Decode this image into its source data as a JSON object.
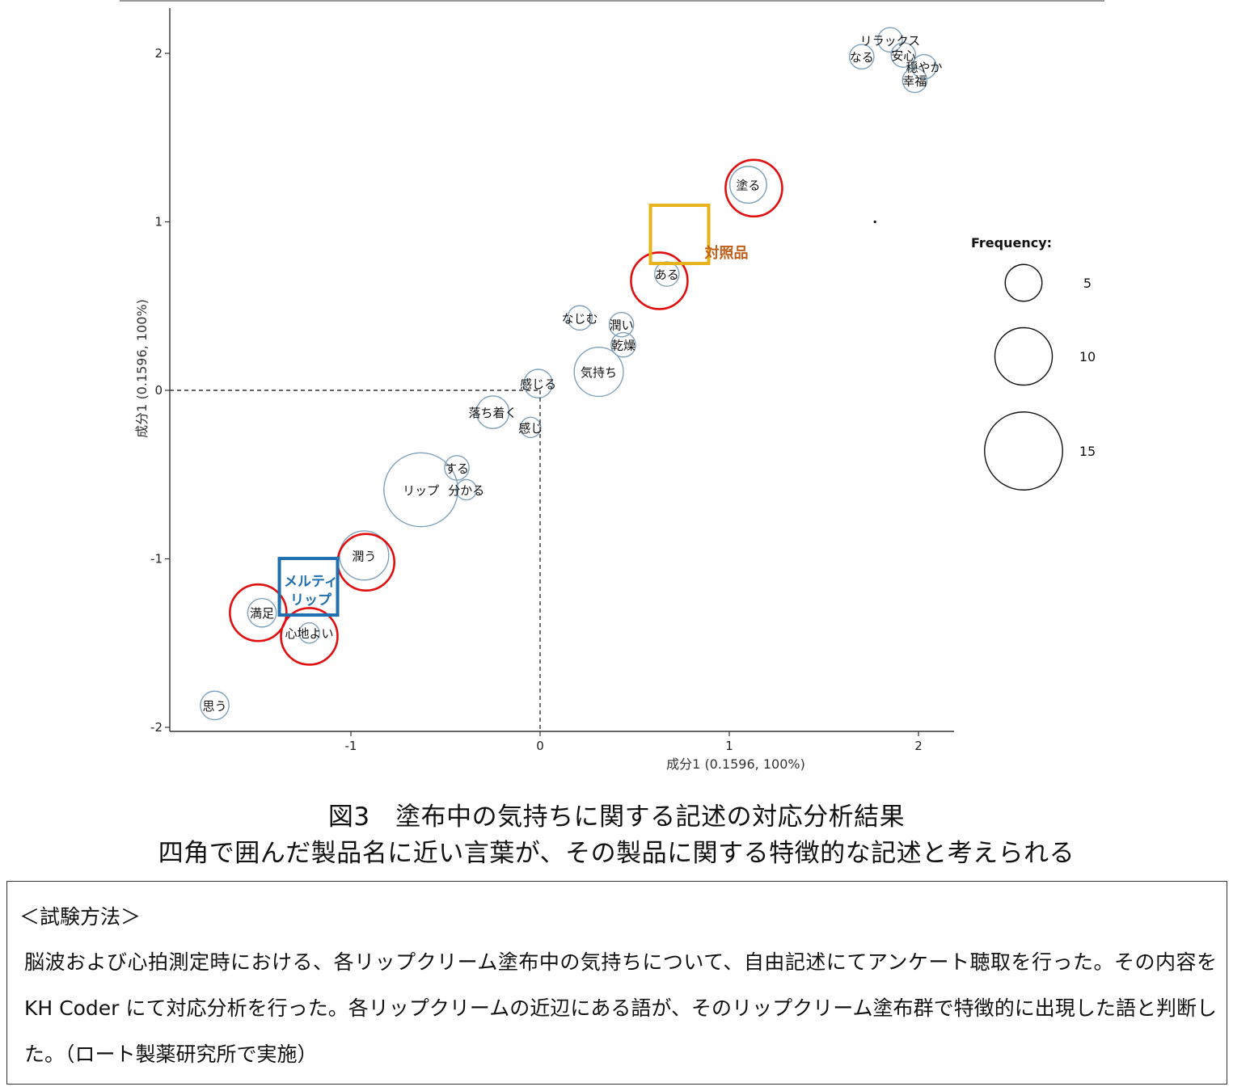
{
  "chart_data": {
    "type": "scatter",
    "subtype": "bubble",
    "xlabel": "成分1 (0.1596, 100%)",
    "ylabel": "成分1 (0.1596, 100%)",
    "xlim": [
      -1.95,
      2.2
    ],
    "ylim": [
      -2.02,
      2.28
    ],
    "x_ticks": [
      {
        "v": -1,
        "label": "-1"
      },
      {
        "v": 0,
        "label": "0"
      },
      {
        "v": 1,
        "label": "1"
      },
      {
        "v": 2,
        "label": "2"
      }
    ],
    "y_ticks": [
      {
        "v": -2,
        "label": "-2"
      },
      {
        "v": -1,
        "label": "-1"
      },
      {
        "v": 0,
        "label": "0"
      },
      {
        "v": 1,
        "label": "1"
      },
      {
        "v": 2,
        "label": "2"
      }
    ],
    "reference_lines": {
      "x": 0,
      "y": 0,
      "style": "dashed"
    },
    "words": [
      {
        "label": "リラックス",
        "x": 1.85,
        "y": 2.08,
        "freq": 2
      },
      {
        "label": "安心",
        "x": 1.92,
        "y": 1.99,
        "freq": 2
      },
      {
        "label": "なる",
        "x": 1.7,
        "y": 1.98,
        "freq": 2
      },
      {
        "label": "穏やか",
        "x": 2.03,
        "y": 1.92,
        "freq": 2
      },
      {
        "label": "幸福",
        "x": 1.98,
        "y": 1.84,
        "freq": 2
      },
      {
        "label": "塗る",
        "x": 1.1,
        "y": 1.22,
        "freq": 5
      },
      {
        "label": "ある",
        "x": 0.67,
        "y": 0.69,
        "freq": 2
      },
      {
        "label": "なじむ",
        "x": 0.21,
        "y": 0.43,
        "freq": 2
      },
      {
        "label": "潤い",
        "x": 0.43,
        "y": 0.39,
        "freq": 2
      },
      {
        "label": "乾燥",
        "x": 0.44,
        "y": 0.27,
        "freq": 2
      },
      {
        "label": "気持ち",
        "x": 0.31,
        "y": 0.11,
        "freq": 8
      },
      {
        "label": "感じる",
        "x": -0.01,
        "y": 0.04,
        "freq": 3
      },
      {
        "label": "落ち着く",
        "x": -0.25,
        "y": -0.13,
        "freq": 4
      },
      {
        "label": "感じ",
        "x": -0.05,
        "y": -0.22,
        "freq": 1
      },
      {
        "label": "する",
        "x": -0.44,
        "y": -0.46,
        "freq": 2
      },
      {
        "label": "リップ",
        "x": -0.63,
        "y": -0.59,
        "freq": 14
      },
      {
        "label": "分かる",
        "x": -0.39,
        "y": -0.59,
        "freq": 1
      },
      {
        "label": "潤う",
        "x": -0.93,
        "y": -0.98,
        "freq": 8
      },
      {
        "label": "満足",
        "x": -1.47,
        "y": -1.32,
        "freq": 3
      },
      {
        "label": "心地よい",
        "x": -1.22,
        "y": -1.44,
        "freq": 1
      },
      {
        "label": "思う",
        "x": -1.72,
        "y": -1.87,
        "freq": 3
      }
    ],
    "highlights": [
      {
        "word": "塗る",
        "x": 1.13,
        "y": 1.2
      },
      {
        "word": "ある",
        "x": 0.63,
        "y": 0.65
      },
      {
        "word": "潤う",
        "x": -0.92,
        "y": -1.02
      },
      {
        "word": "満足",
        "x": -1.49,
        "y": -1.32
      },
      {
        "word": "心地よい",
        "x": -1.22,
        "y": -1.46
      }
    ],
    "products": [
      {
        "label": "対照品",
        "x": 0.78,
        "y": 0.82,
        "color": "#E8B21A",
        "text_color": "#C0601A"
      },
      {
        "label_lines": [
          "メルティ",
          "リップ"
        ],
        "x": -1.22,
        "y": -1.3,
        "color": "#1F6FB0",
        "text_color": "#1F6FB0"
      }
    ],
    "legend": {
      "title": "Frequency:",
      "position": "right",
      "items": [
        {
          "size": 5,
          "label": "5"
        },
        {
          "size": 10,
          "label": "10"
        },
        {
          "size": 15,
          "label": "15"
        }
      ]
    },
    "colors": {
      "bubble": "#7fa1bb",
      "highlight": "#e01010",
      "axis": "#333333"
    }
  },
  "caption": {
    "line1": "図3　塗布中の気持ちに関する記述の対応分析結果",
    "line2": "四角で囲んだ製品名に近い言葉が、その製品に関する特徴的な記述と考えられる"
  },
  "method": {
    "title": "＜試験方法＞",
    "body": "脳波および心拍測定時における、各リップクリーム塗布中の気持ちについて、自由記述にてアンケート聴取を行った。その内容を KH Coder にて対応分析を行った。各リップクリームの近辺にある語が、そのリップクリーム塗布群で特徴的に出現した語と判断した。（ロート製薬研究所で実施）"
  }
}
